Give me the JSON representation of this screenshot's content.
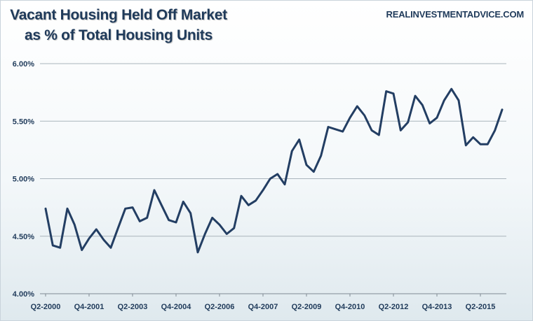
{
  "header": {
    "title_line1": "Vacant Housing Held Off Market",
    "title_line2": "as % of Total Housing Units",
    "source": "REALINVESTMENTADVICE.COM"
  },
  "colors": {
    "line": "#233e63",
    "grid": "#aab4bc",
    "text": "#1f3a5a"
  },
  "chart_data": {
    "type": "line",
    "title": "Vacant Housing Held Off Market as % of Total Housing Units",
    "xlabel": "",
    "ylabel": "",
    "ylim": [
      4.0,
      6.0
    ],
    "yticks": [
      4.0,
      4.5,
      5.0,
      5.5,
      6.0
    ],
    "ytick_labels": [
      "4.00%",
      "4.50%",
      "5.00%",
      "5.50%",
      "6.00%"
    ],
    "grid": true,
    "xtick_labels": [
      "Q2-2000",
      "Q4-2001",
      "Q2-2003",
      "Q4-2004",
      "Q2-2006",
      "Q4-2007",
      "Q2-2009",
      "Q4-2010",
      "Q2-2012",
      "Q4-2013",
      "Q2-2015"
    ],
    "x_start": "Q2-2000",
    "x_end": "Q4-2015",
    "series": [
      {
        "values": [
          4.74,
          4.42,
          4.4,
          4.74,
          4.6,
          4.38,
          4.48,
          4.56,
          4.47,
          4.4,
          4.57,
          4.74,
          4.75,
          4.63,
          4.66,
          4.9,
          4.77,
          4.64,
          4.62,
          4.8,
          4.7,
          4.36,
          4.52,
          4.66,
          4.6,
          4.52,
          4.57,
          4.85,
          4.77,
          4.81,
          4.9,
          5.0,
          5.04,
          4.95,
          5.24,
          5.34,
          5.12,
          5.06,
          5.2,
          5.45,
          5.43,
          5.41,
          5.53,
          5.63,
          5.55,
          5.42,
          5.38,
          5.76,
          5.74,
          5.42,
          5.49,
          5.72,
          5.64,
          5.48,
          5.53,
          5.68,
          5.78,
          5.68,
          5.29,
          5.36,
          5.3,
          5.3,
          5.42,
          5.6
        ]
      }
    ]
  }
}
